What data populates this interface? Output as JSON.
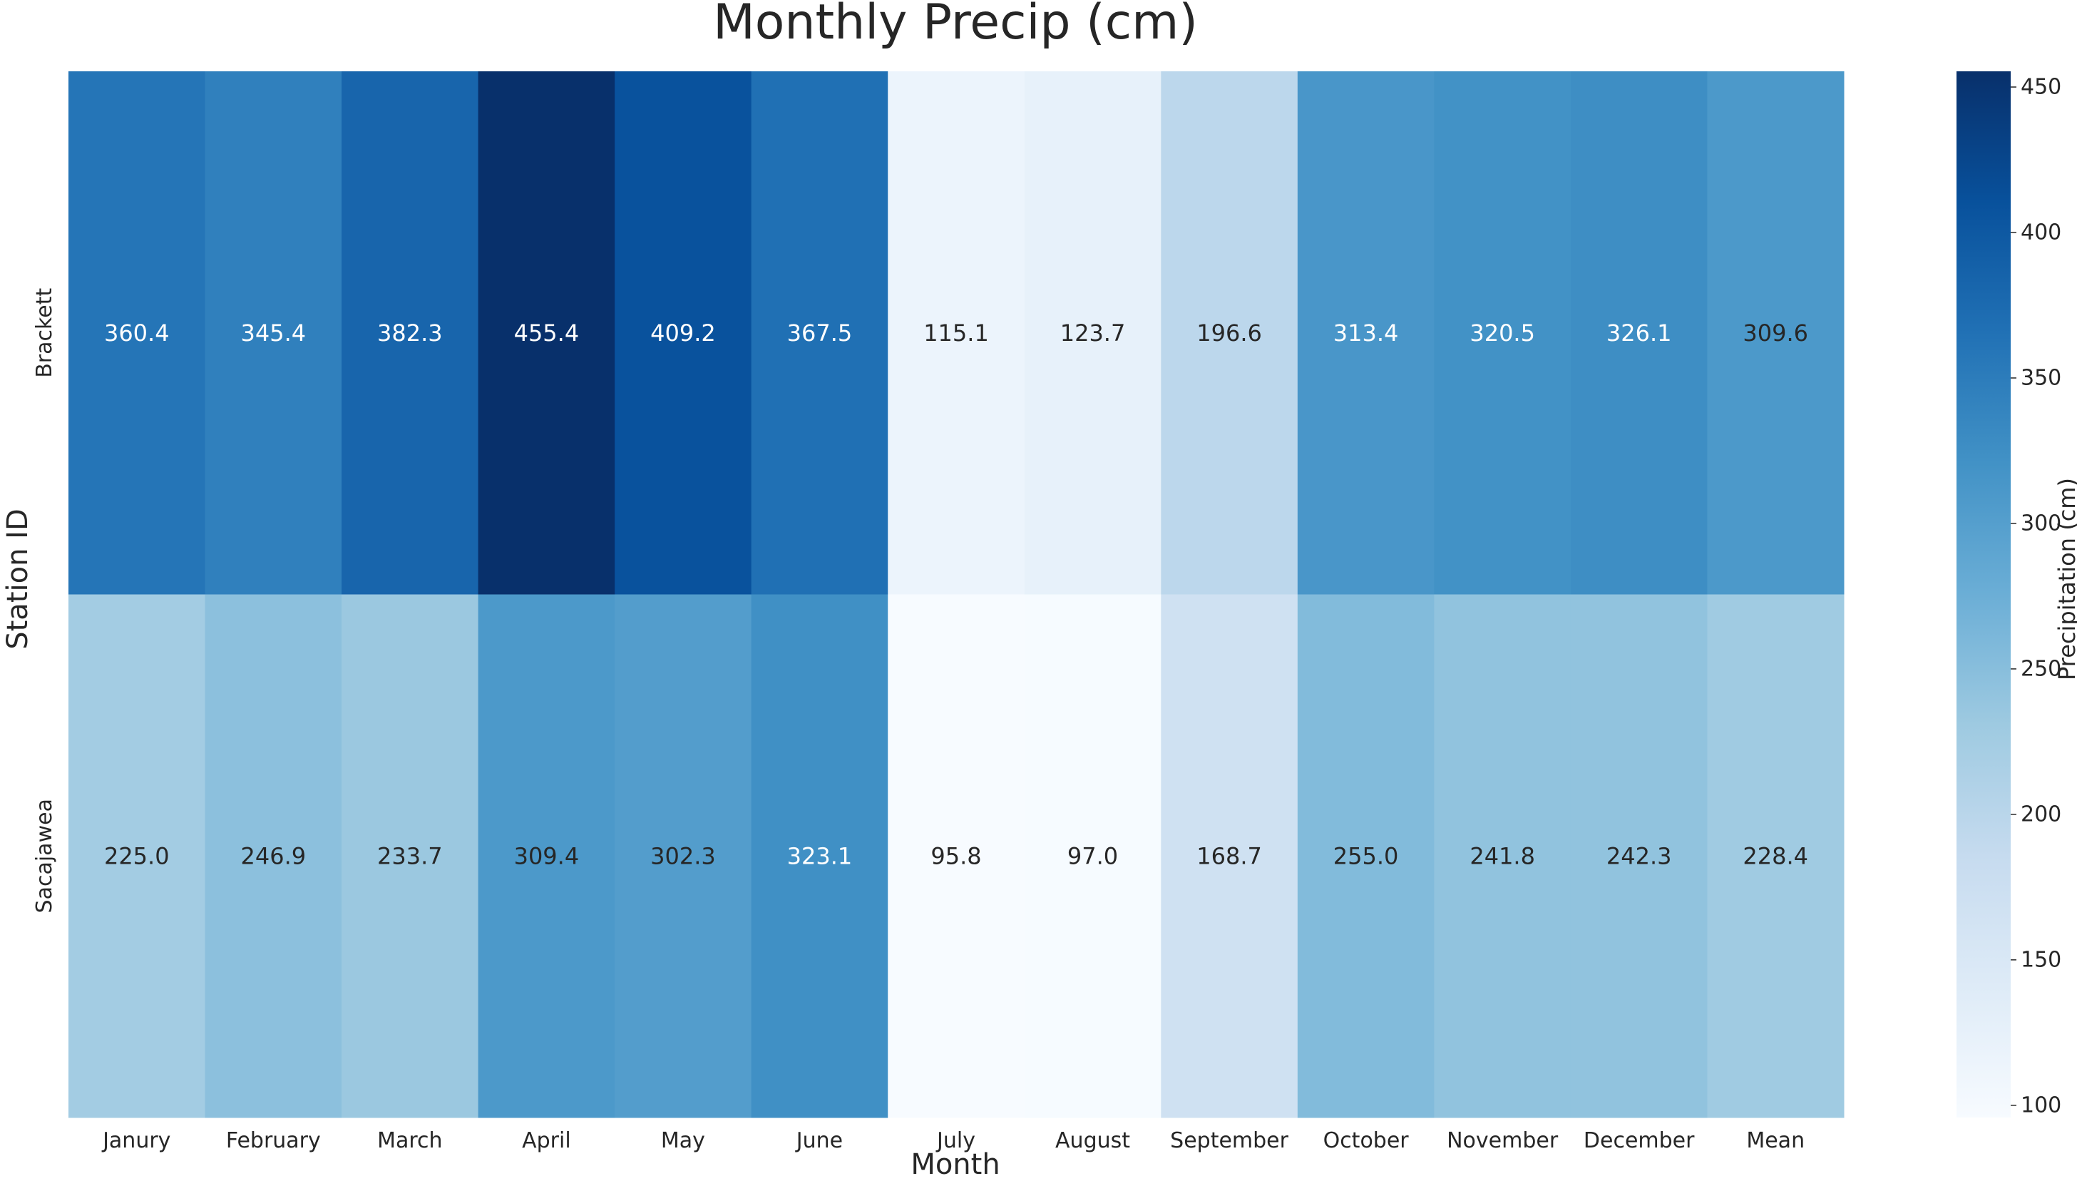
{
  "chart_data": {
    "type": "heatmap",
    "title": "Monthly Precip (cm)",
    "xlabel": "Month",
    "ylabel": "Station ID",
    "colorbar_label": "Precipitation (cm)",
    "colormap": "Blues",
    "columns": [
      "Janury",
      "February",
      "March",
      "April",
      "May",
      "June",
      "July",
      "August",
      "September",
      "October",
      "November",
      "December",
      "Mean"
    ],
    "rows": [
      "Brackett",
      "Sacajawea"
    ],
    "values": [
      [
        360.4,
        345.4,
        382.3,
        455.4,
        409.2,
        367.5,
        115.1,
        123.7,
        196.6,
        313.4,
        320.5,
        326.1,
        309.6
      ],
      [
        225.0,
        246.9,
        233.7,
        309.4,
        302.3,
        323.1,
        95.8,
        97.0,
        168.7,
        255.0,
        241.8,
        242.3,
        228.4
      ]
    ],
    "value_labels": [
      [
        "360.4",
        "345.4",
        "382.3",
        "455.4",
        "409.2",
        "367.5",
        "115.1",
        "123.7",
        "196.6",
        "313.4",
        "320.5",
        "326.1",
        "309.6"
      ],
      [
        "225.0",
        "246.9",
        "233.7",
        "309.4",
        "302.3",
        "323.1",
        "95.8",
        "97.0",
        "168.7",
        "255.0",
        "241.8",
        "242.3",
        "228.4"
      ]
    ],
    "vmin": 95.8,
    "vmax": 455.4,
    "colorbar_ticks": [
      100,
      150,
      200,
      250,
      300,
      350,
      400,
      450
    ],
    "colorbar_tick_labels": [
      "100",
      "150",
      "200",
      "250",
      "300",
      "350",
      "400",
      "450"
    ]
  }
}
